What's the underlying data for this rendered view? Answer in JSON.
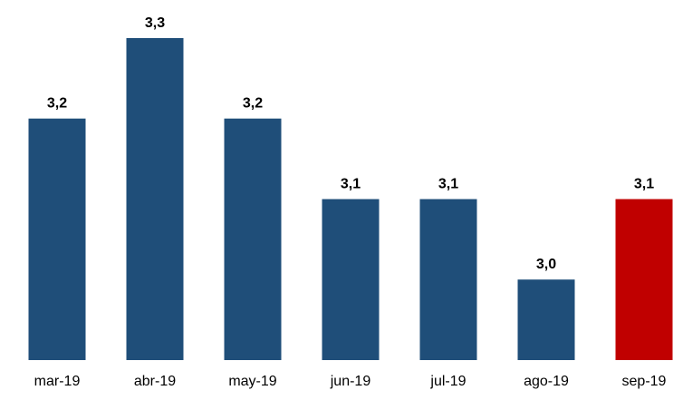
{
  "chart_data": {
    "type": "bar",
    "title": "",
    "xlabel": "",
    "ylabel": "",
    "categories": [
      "mar-19",
      "abr-19",
      "may-19",
      "jun-19",
      "jul-19",
      "ago-19",
      "sep-19"
    ],
    "values": [
      3.2,
      3.3,
      3.2,
      3.1,
      3.1,
      3.0,
      3.1
    ],
    "value_labels": [
      "3,2",
      "3,3",
      "3,2",
      "3,1",
      "3,1",
      "3,0",
      "3,1"
    ],
    "bar_colors": [
      "#1f4e79",
      "#1f4e79",
      "#1f4e79",
      "#1f4e79",
      "#1f4e79",
      "#1f4e79",
      "#c00000"
    ],
    "highlight_category": "sep-19",
    "ylim": [
      2.9,
      3.3
    ],
    "grid": false,
    "legend": "none"
  }
}
